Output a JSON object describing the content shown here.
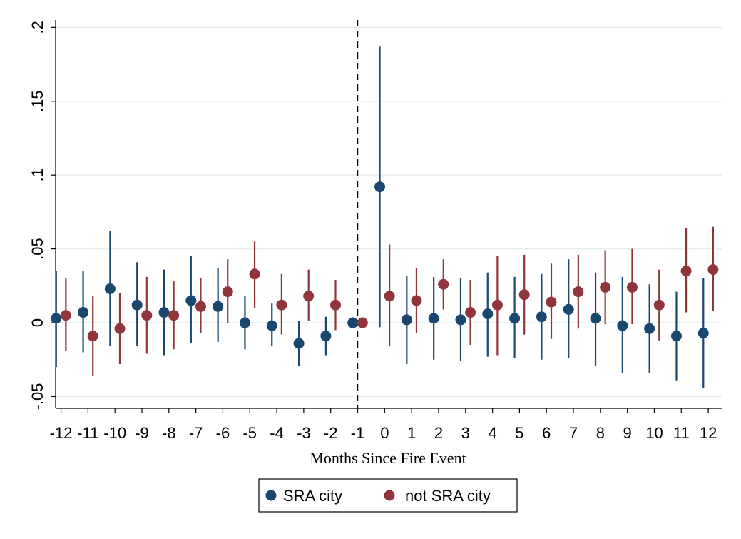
{
  "chart_data": {
    "type": "scatter",
    "title": "",
    "xlabel": "Months Since Fire Event",
    "ylabel": "",
    "x": [
      -12,
      -11,
      -10,
      -9,
      -8,
      -7,
      -6,
      -5,
      -4,
      -3,
      -2,
      -1,
      0,
      1,
      2,
      3,
      4,
      5,
      6,
      7,
      8,
      9,
      10,
      11,
      12
    ],
    "x_tick_labels": [
      "-12",
      "-11",
      "-10",
      "-9",
      "-8",
      "-7",
      "-6",
      "-5",
      "-4",
      "-3",
      "-2",
      "-1",
      "0",
      "1",
      "2",
      "3",
      "4",
      "5",
      "6",
      "7",
      "8",
      "9",
      "10",
      "11",
      "12"
    ],
    "y_ticks": [
      -0.05,
      0,
      0.05,
      0.1,
      0.15,
      0.2
    ],
    "y_tick_labels": [
      "-.05",
      "0",
      ".05",
      ".1",
      ".15",
      ".2"
    ],
    "xlim": [
      -12.2,
      12.5
    ],
    "ylim": [
      -0.058,
      0.205
    ],
    "reference_line_x": -1,
    "grid": true,
    "legend_position": "bottom-center",
    "series": [
      {
        "name": "SRA city",
        "color": "#1a476f",
        "values": [
          0.003,
          0.007,
          0.023,
          0.012,
          0.007,
          0.015,
          0.011,
          0.0,
          -0.002,
          -0.014,
          -0.009,
          0.0,
          0.092,
          0.002,
          0.003,
          0.002,
          0.006,
          0.003,
          0.004,
          0.009,
          0.003,
          -0.002,
          -0.004,
          -0.009,
          -0.007
        ],
        "lower": [
          -0.03,
          -0.02,
          -0.016,
          -0.016,
          -0.022,
          -0.014,
          -0.013,
          -0.018,
          -0.016,
          -0.029,
          -0.022,
          0.0,
          -0.003,
          -0.028,
          -0.025,
          -0.026,
          -0.023,
          -0.024,
          -0.025,
          -0.024,
          -0.029,
          -0.034,
          -0.034,
          -0.039,
          -0.044
        ],
        "upper": [
          0.035,
          0.035,
          0.062,
          0.041,
          0.036,
          0.045,
          0.037,
          0.018,
          0.013,
          0.001,
          0.004,
          0.0,
          0.187,
          0.032,
          0.031,
          0.03,
          0.034,
          0.031,
          0.033,
          0.043,
          0.034,
          0.031,
          0.026,
          0.021,
          0.03
        ]
      },
      {
        "name": "not SRA city",
        "color": "#90353b",
        "values": [
          0.005,
          -0.009,
          -0.004,
          0.005,
          0.005,
          0.011,
          0.021,
          0.033,
          0.012,
          0.018,
          0.012,
          0.0,
          0.018,
          0.015,
          0.026,
          0.007,
          0.012,
          0.019,
          0.014,
          0.021,
          0.024,
          0.024,
          0.012,
          0.035,
          0.036
        ],
        "lower": [
          -0.019,
          -0.036,
          -0.028,
          -0.021,
          -0.018,
          -0.007,
          0.0,
          0.01,
          -0.008,
          0.001,
          -0.005,
          0.0,
          -0.016,
          -0.007,
          0.009,
          -0.015,
          -0.022,
          -0.008,
          -0.011,
          -0.004,
          -0.001,
          -0.001,
          -0.012,
          0.007,
          0.008
        ],
        "upper": [
          0.03,
          0.018,
          0.02,
          0.031,
          0.028,
          0.03,
          0.043,
          0.055,
          0.033,
          0.036,
          0.029,
          0.0,
          0.053,
          0.037,
          0.043,
          0.029,
          0.045,
          0.046,
          0.04,
          0.046,
          0.049,
          0.05,
          0.036,
          0.064,
          0.065
        ]
      }
    ]
  }
}
